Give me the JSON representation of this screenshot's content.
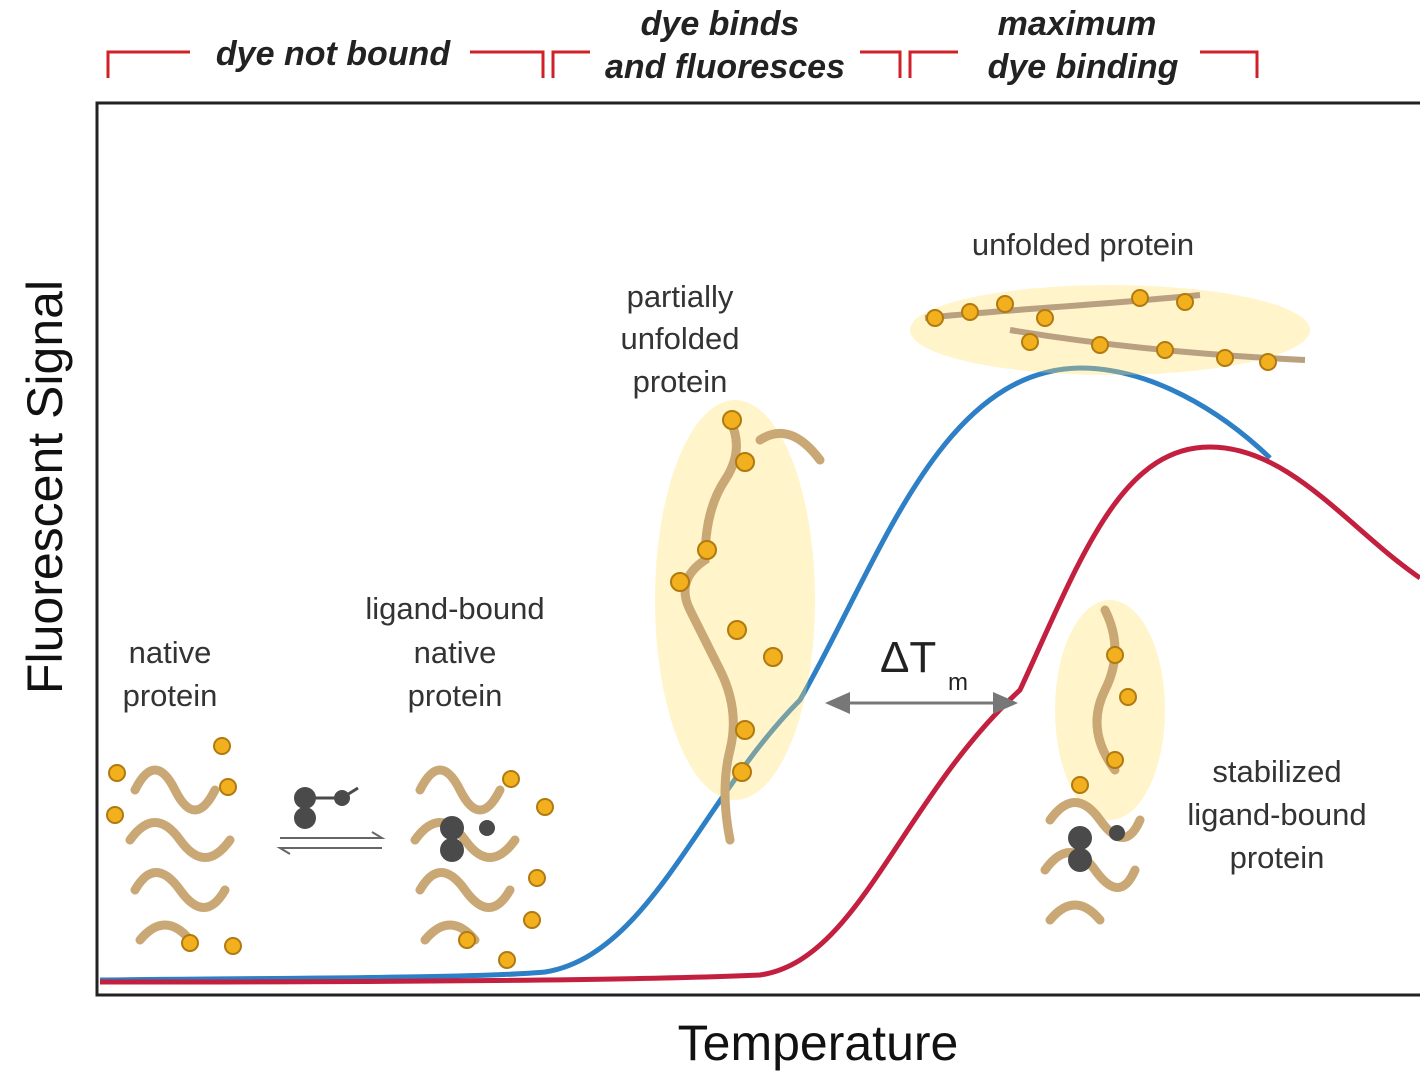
{
  "header": {
    "phases": [
      {
        "lines": [
          "dye not bound"
        ]
      },
      {
        "lines": [
          "dye binds",
          "and fluoresces"
        ]
      },
      {
        "lines": [
          "maximum",
          "dye binding"
        ]
      }
    ]
  },
  "axes": {
    "y_label": "Fluorescent Signal",
    "x_label": "Temperature"
  },
  "annotations": {
    "native": [
      "native",
      "protein"
    ],
    "ligand_bound": [
      "ligand-bound",
      "native",
      "protein"
    ],
    "partially_unfolded": [
      "partially",
      "unfolded",
      "protein"
    ],
    "unfolded": [
      "unfolded protein"
    ],
    "stabilized": [
      "stabilized",
      "ligand-bound",
      "protein"
    ],
    "delta_tm": {
      "symbol": "ΔT",
      "subscript": "m"
    }
  }
}
